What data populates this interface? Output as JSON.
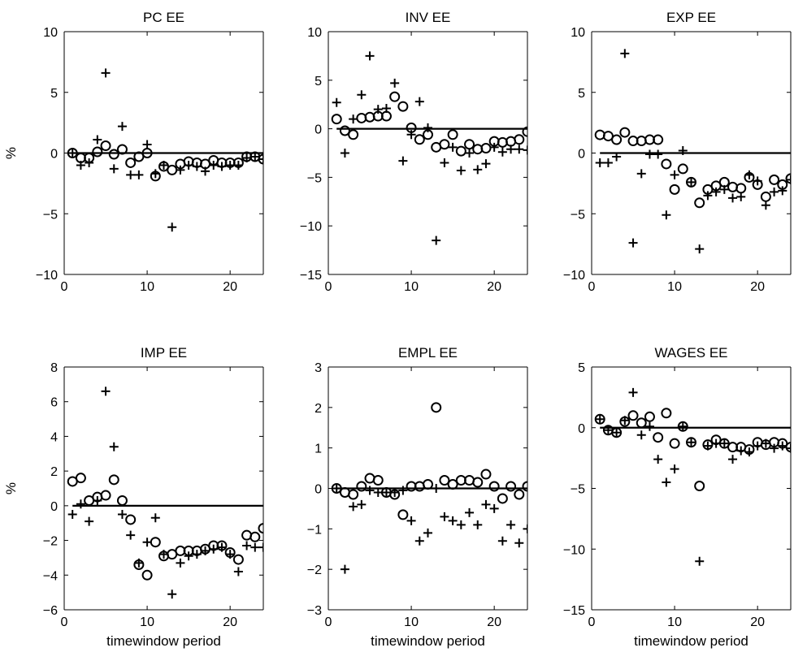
{
  "chart_data": [
    {
      "type": "scatter",
      "title": "PC EE",
      "xlabel": "",
      "ylabel": "%",
      "xlim": [
        0,
        24
      ],
      "ylim": [
        -10,
        10
      ],
      "xticks": [
        "0",
        "10",
        "20"
      ],
      "xtick_values": [
        0,
        10,
        20
      ],
      "yticks": [
        "−10",
        "−5",
        "0",
        "5",
        "10"
      ],
      "ytick_values": [
        -10,
        -5,
        0,
        5,
        10
      ],
      "reference_line_y": 0,
      "series": [
        {
          "marker": "circle",
          "x": [
            1,
            2,
            3,
            4,
            5,
            6,
            7,
            8,
            9,
            10,
            11,
            12,
            13,
            14,
            15,
            16,
            17,
            18,
            19,
            20,
            21,
            22,
            23,
            24
          ],
          "y": [
            0,
            -0.4,
            -0.4,
            0.1,
            0.6,
            -0.1,
            0.3,
            -0.8,
            -0.3,
            0,
            -1.9,
            -1.1,
            -1.4,
            -0.9,
            -0.7,
            -0.8,
            -0.9,
            -0.6,
            -0.8,
            -0.8,
            -0.8,
            -0.3,
            -0.3,
            -0.5
          ]
        },
        {
          "marker": "plus",
          "x": [
            1,
            2,
            3,
            4,
            5,
            6,
            7,
            8,
            9,
            10,
            11,
            12,
            13,
            14,
            15,
            16,
            17,
            18,
            19,
            20,
            21,
            22,
            23,
            24
          ],
          "y": [
            0,
            -1.0,
            -0.8,
            1.1,
            6.6,
            -1.3,
            2.2,
            -1.8,
            -1.8,
            0.7,
            -1.7,
            -1.0,
            -6.1,
            -1.4,
            -1.0,
            -1.1,
            -1.5,
            -1.0,
            -1.1,
            -1.0,
            -1.0,
            -0.4,
            -0.3,
            -0.5
          ]
        }
      ]
    },
    {
      "type": "scatter",
      "title": "INV EE",
      "xlabel": "",
      "ylabel": "",
      "xlim": [
        0,
        24
      ],
      "ylim": [
        -15,
        10
      ],
      "xticks": [
        "0",
        "10",
        "20"
      ],
      "xtick_values": [
        0,
        10,
        20
      ],
      "yticks": [
        "−15",
        "−10",
        "−5",
        "0",
        "5",
        "10"
      ],
      "ytick_values": [
        -15,
        -10,
        -5,
        0,
        5,
        10
      ],
      "reference_line_y": 0,
      "series": [
        {
          "marker": "circle",
          "x": [
            1,
            2,
            3,
            4,
            5,
            6,
            7,
            8,
            9,
            10,
            11,
            12,
            13,
            14,
            15,
            16,
            17,
            18,
            19,
            20,
            21,
            22,
            23,
            24
          ],
          "y": [
            1,
            -0.2,
            -0.6,
            1.1,
            1.2,
            1.3,
            1.3,
            3.3,
            2.3,
            0.1,
            -1.1,
            -0.6,
            -1.9,
            -1.6,
            -0.6,
            -2.3,
            -1.6,
            -2.1,
            -2.0,
            -1.3,
            -1.4,
            -1.3,
            -1.1,
            -0.3
          ]
        },
        {
          "marker": "plus",
          "x": [
            1,
            2,
            3,
            4,
            5,
            6,
            7,
            8,
            9,
            10,
            11,
            12,
            13,
            14,
            15,
            16,
            17,
            18,
            19,
            20,
            21,
            22,
            23,
            24
          ],
          "y": [
            2.7,
            -2.5,
            1.0,
            3.5,
            7.5,
            2.0,
            2.1,
            4.7,
            -3.3,
            -0.6,
            2.8,
            0.1,
            -11.5,
            -3.5,
            -1.9,
            -4.3,
            -2.5,
            -4.2,
            -3.6,
            -1.9,
            -2.4,
            -2.1,
            -2.1,
            -2.2
          ]
        }
      ]
    },
    {
      "type": "scatter",
      "title": "EXP EE",
      "xlabel": "",
      "ylabel": "",
      "xlim": [
        0,
        24
      ],
      "ylim": [
        -10,
        10
      ],
      "xticks": [
        "0",
        "10",
        "20"
      ],
      "xtick_values": [
        0,
        10,
        20
      ],
      "yticks": [
        "−10",
        "−5",
        "0",
        "5",
        "10"
      ],
      "ytick_values": [
        -10,
        -5,
        0,
        5,
        10
      ],
      "reference_line_y": 0,
      "series": [
        {
          "marker": "circle",
          "x": [
            1,
            2,
            3,
            4,
            5,
            6,
            7,
            8,
            9,
            10,
            11,
            12,
            13,
            14,
            15,
            16,
            17,
            18,
            19,
            20,
            21,
            22,
            23,
            24
          ],
          "y": [
            1.5,
            1.4,
            1.1,
            1.7,
            1.0,
            1.0,
            1.1,
            1.1,
            -0.9,
            -3.0,
            -1.3,
            -2.4,
            -4.1,
            -3.0,
            -2.7,
            -2.4,
            -2.8,
            -2.9,
            -2.0,
            -2.6,
            -3.6,
            -2.2,
            -2.6,
            -2.1
          ]
        },
        {
          "marker": "plus",
          "x": [
            1,
            2,
            3,
            4,
            5,
            6,
            7,
            8,
            9,
            10,
            11,
            12,
            13,
            14,
            15,
            16,
            17,
            18,
            19,
            20,
            21,
            22,
            23,
            24
          ],
          "y": [
            -0.8,
            -0.8,
            -0.3,
            8.2,
            -7.4,
            -1.7,
            -0.1,
            -0.1,
            -5.1,
            -1.8,
            0.2,
            -2.4,
            -7.9,
            -3.5,
            -3.2,
            -3.0,
            -3.7,
            -3.6,
            -1.8,
            -2.3,
            -4.3,
            -3.2,
            -3.1,
            -2.2
          ]
        }
      ]
    },
    {
      "type": "scatter",
      "title": "IMP EE",
      "xlabel": "timewindow period",
      "ylabel": "%",
      "xlim": [
        0,
        24
      ],
      "ylim": [
        -6,
        8
      ],
      "xticks": [
        "0",
        "10",
        "20"
      ],
      "xtick_values": [
        0,
        10,
        20
      ],
      "yticks": [
        "−6",
        "−4",
        "−2",
        "0",
        "2",
        "4",
        "6",
        "8"
      ],
      "ytick_values": [
        -6,
        -4,
        -2,
        0,
        2,
        4,
        6,
        8
      ],
      "reference_line_y": 0,
      "series": [
        {
          "marker": "circle",
          "x": [
            1,
            2,
            3,
            4,
            5,
            6,
            7,
            8,
            9,
            10,
            11,
            12,
            13,
            14,
            15,
            16,
            17,
            18,
            19,
            20,
            21,
            22,
            23,
            24
          ],
          "y": [
            1.4,
            1.6,
            0.3,
            0.5,
            0.6,
            1.5,
            0.3,
            -0.8,
            -3.4,
            -4.0,
            -2.1,
            -2.9,
            -2.8,
            -2.6,
            -2.6,
            -2.6,
            -2.5,
            -2.3,
            -2.3,
            -2.7,
            -3.1,
            -1.7,
            -1.8,
            -1.3
          ]
        },
        {
          "marker": "plus",
          "x": [
            1,
            2,
            3,
            4,
            5,
            6,
            7,
            8,
            9,
            10,
            11,
            12,
            13,
            14,
            15,
            16,
            17,
            18,
            19,
            20,
            21,
            22,
            23,
            24
          ],
          "y": [
            -0.5,
            0.1,
            -0.9,
            0.3,
            6.6,
            3.4,
            -0.5,
            -1.7,
            -3.3,
            -2.1,
            -0.7,
            -2.8,
            -5.1,
            -3.3,
            -2.9,
            -2.8,
            -2.6,
            -2.5,
            -2.4,
            -2.8,
            -3.8,
            -2.3,
            -2.4,
            -2.4
          ]
        }
      ]
    },
    {
      "type": "scatter",
      "title": "EMPL EE",
      "xlabel": "timewindow period",
      "ylabel": "",
      "xlim": [
        0,
        24
      ],
      "ylim": [
        -3,
        3
      ],
      "xticks": [
        "0",
        "10",
        "20"
      ],
      "xtick_values": [
        0,
        10,
        20
      ],
      "yticks": [
        "−3",
        "−2",
        "−1",
        "0",
        "1",
        "2",
        "3"
      ],
      "ytick_values": [
        -3,
        -2,
        -1,
        0,
        1,
        2,
        3
      ],
      "reference_line_y": 0,
      "series": [
        {
          "marker": "circle",
          "x": [
            1,
            2,
            3,
            4,
            5,
            6,
            7,
            8,
            9,
            10,
            11,
            12,
            13,
            14,
            15,
            16,
            17,
            18,
            19,
            20,
            21,
            22,
            23,
            24
          ],
          "y": [
            0,
            -0.1,
            -0.15,
            0.05,
            0.25,
            0.2,
            -0.1,
            -0.15,
            -0.65,
            0.05,
            0.05,
            0.1,
            2.0,
            0.2,
            0.1,
            0.2,
            0.2,
            0.15,
            0.35,
            0.05,
            -0.25,
            0.05,
            -0.15,
            0.05
          ]
        },
        {
          "marker": "plus",
          "x": [
            1,
            2,
            3,
            4,
            5,
            6,
            7,
            8,
            9,
            10,
            11,
            12,
            13,
            14,
            15,
            16,
            17,
            18,
            19,
            20,
            21,
            22,
            23,
            24
          ],
          "y": [
            0,
            -2.0,
            -0.45,
            -0.4,
            -0.05,
            -0.1,
            -0.1,
            -0.1,
            -0.05,
            -0.8,
            -1.3,
            -1.1,
            0,
            -0.7,
            -0.8,
            -0.9,
            -0.6,
            -0.9,
            -0.4,
            -0.5,
            -1.3,
            -0.9,
            -1.35,
            -1.0
          ]
        }
      ]
    },
    {
      "type": "scatter",
      "title": "WAGES EE",
      "xlabel": "timewindow period",
      "ylabel": "",
      "xlim": [
        0,
        24
      ],
      "ylim": [
        -15,
        5
      ],
      "xticks": [
        "0",
        "10",
        "20"
      ],
      "xtick_values": [
        0,
        10,
        20
      ],
      "yticks": [
        "−15",
        "−10",
        "−5",
        "0",
        "5"
      ],
      "ytick_values": [
        -15,
        -10,
        -5,
        0,
        5
      ],
      "reference_line_y": 0,
      "series": [
        {
          "marker": "circle",
          "x": [
            1,
            2,
            3,
            4,
            5,
            6,
            7,
            8,
            9,
            10,
            11,
            12,
            13,
            14,
            15,
            16,
            17,
            18,
            19,
            20,
            21,
            22,
            23,
            24
          ],
          "y": [
            0.7,
            -0.2,
            -0.4,
            0.5,
            1.0,
            0.4,
            0.9,
            -0.8,
            1.2,
            -1.3,
            0.1,
            -1.2,
            -4.8,
            -1.4,
            -1.0,
            -1.3,
            -1.6,
            -1.6,
            -1.8,
            -1.2,
            -1.4,
            -1.2,
            -1.3,
            -1.6
          ]
        },
        {
          "marker": "plus",
          "x": [
            1,
            2,
            3,
            4,
            5,
            6,
            7,
            8,
            9,
            10,
            11,
            12,
            13,
            14,
            15,
            16,
            17,
            18,
            19,
            20,
            21,
            22,
            23,
            24
          ],
          "y": [
            0.7,
            -0.2,
            -0.4,
            0.6,
            2.9,
            -0.6,
            0.1,
            -2.6,
            -4.5,
            -3.4,
            0.1,
            -1.2,
            -11.0,
            -1.5,
            -1.3,
            -1.3,
            -2.6,
            -1.9,
            -2.0,
            -1.5,
            -1.3,
            -1.7,
            -1.5,
            -1.7
          ]
        }
      ]
    }
  ]
}
